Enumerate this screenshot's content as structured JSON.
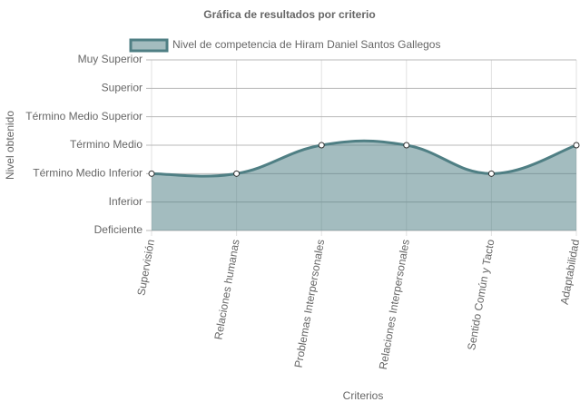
{
  "chart_data": {
    "type": "line",
    "title": "Gráfica de resultados por criterio",
    "x_label": "Criterios",
    "y_label": "Nivel obtenido",
    "categories": [
      "Supervisión",
      "Relaciones humanas",
      "Problemas Interpersonales",
      "Relaciones Interpersonales",
      "Sentido Común y Tacto",
      "Adaptabilidad"
    ],
    "series": [
      {
        "name": "Nivel de competencia de Hiram Daniel Santos Gallegos",
        "color": "#4f7f84",
        "values": [
          2,
          2,
          3,
          3,
          2,
          3
        ]
      }
    ],
    "ylim": [
      0,
      6
    ],
    "yticks": [
      {
        "value": 0,
        "label": "Deficiente"
      },
      {
        "value": 1,
        "label": "Inferior"
      },
      {
        "value": 2,
        "label": "Término Medio Inferior"
      },
      {
        "value": 3,
        "label": "Término Medio"
      },
      {
        "value": 4,
        "label": "Término Medio Superior"
      },
      {
        "value": 5,
        "label": "Superior"
      },
      {
        "value": 6,
        "label": "Muy Superior"
      }
    ],
    "grid": true,
    "fill": true
  }
}
